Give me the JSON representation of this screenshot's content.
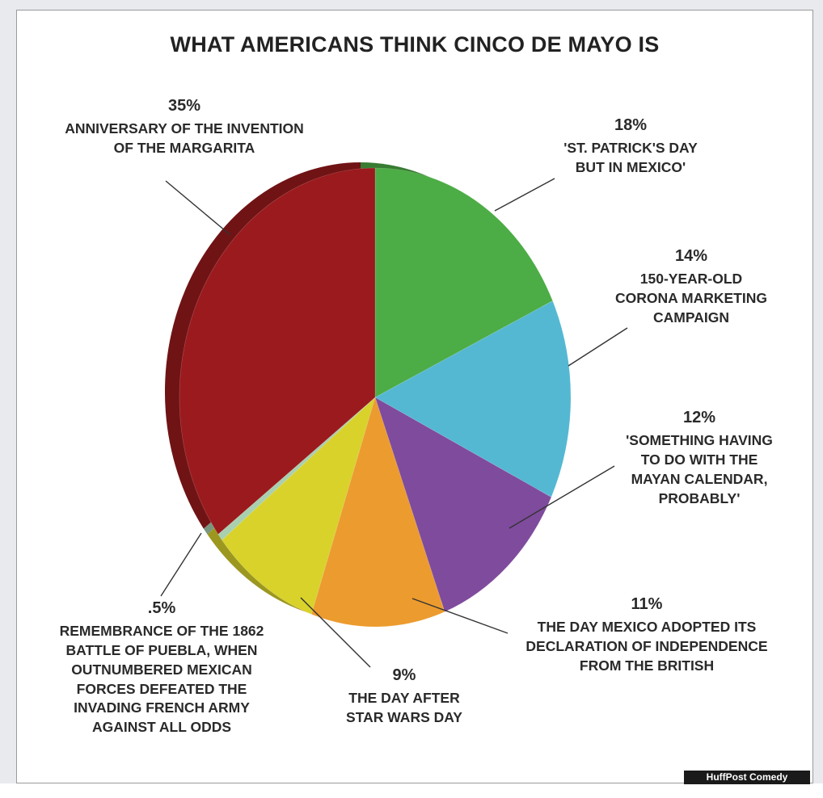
{
  "chart_data": {
    "type": "pie",
    "title": "WHAT AMERICANS THINK CINCO DE MAYO IS",
    "slices": [
      {
        "label": "'ST. PATRICK'S DAY\nBUT IN MEXICO'",
        "pct_label": "18%",
        "value": 18,
        "color": "#4cac45"
      },
      {
        "label": "150-YEAR-OLD\nCORONA MARKETING\nCAMPAIGN",
        "pct_label": "14%",
        "value": 14,
        "color": "#54b8d3"
      },
      {
        "label": "'SOMETHING HAVING\nTO DO WITH THE\nMAYAN CALENDAR,\nPROBABLY'",
        "pct_label": "12%",
        "value": 12,
        "color": "#7f4b9d"
      },
      {
        "label": "THE DAY MEXICO ADOPTED ITS\nDECLARATION OF INDEPENDENCE\nFROM THE BRITISH",
        "pct_label": "11%",
        "value": 11,
        "color": "#ec9b2e"
      },
      {
        "label": "THE DAY AFTER\nSTAR WARS DAY",
        "pct_label": "9%",
        "value": 9,
        "color": "#d9d22b"
      },
      {
        "label": "REMEMBRANCE OF THE 1862\nBATTLE OF PUEBLA, WHEN\nOUTNUMBERED MEXICAN\nFORCES DEFEATED THE\nINVADING FRENCH ARMY\nAGAINST ALL ODDS",
        "pct_label": ".5%",
        "value": 0.5,
        "color": "#a8d0b0"
      },
      {
        "label": "ANNIVERSARY OF THE INVENTION\nOF THE MARGARITA",
        "pct_label": "35%",
        "value": 35,
        "color": "#9b1a1d"
      }
    ]
  },
  "credit": "HuffPost Comedy"
}
